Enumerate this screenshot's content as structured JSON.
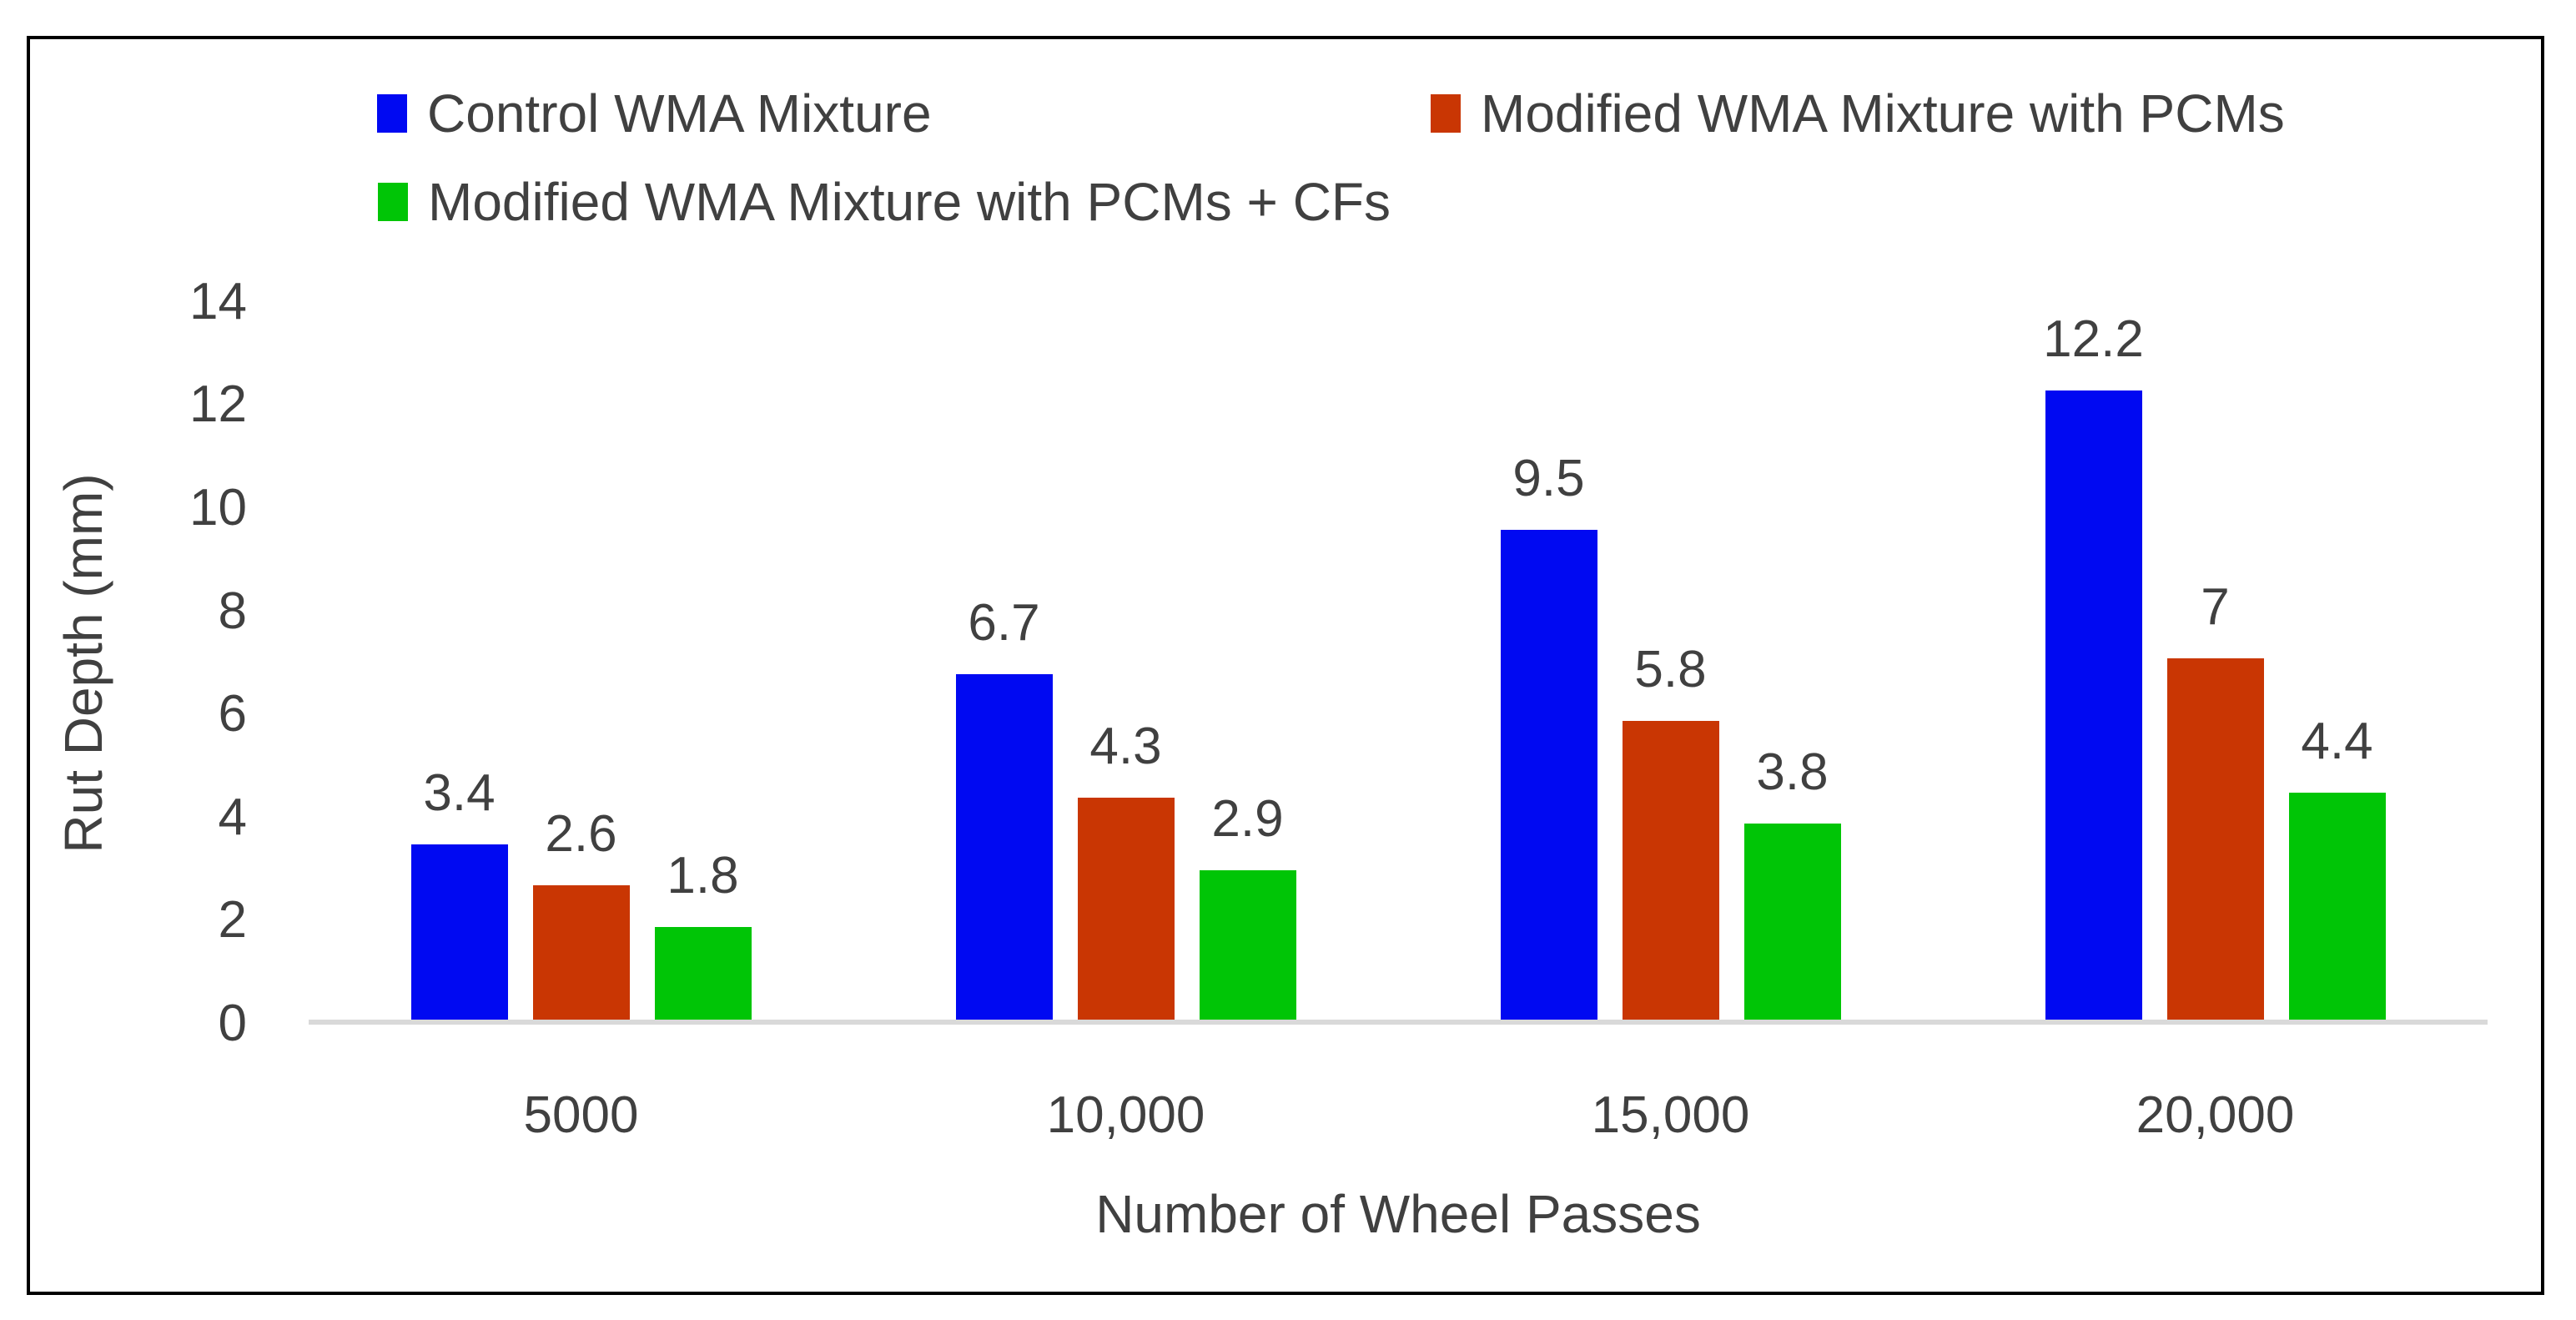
{
  "chart_data": {
    "type": "bar",
    "title": "",
    "categories": [
      "5000",
      "10,000",
      "15,000",
      "20,000"
    ],
    "series": [
      {
        "name": "Control WMA Mixture",
        "color": "#0009F2",
        "values": [
          3.4,
          6.7,
          9.5,
          12.2
        ],
        "labels": [
          "3.4",
          "6.7",
          "9.5",
          "12.2"
        ]
      },
      {
        "name": "Modified WMA Mixture with PCMs",
        "color": "#C93603",
        "values": [
          2.6,
          4.3,
          5.8,
          7
        ],
        "labels": [
          "2.6",
          "4.3",
          "5.8",
          "7"
        ]
      },
      {
        "name": "Modified WMA Mixture with PCMs + CFs",
        "color": "#00C506",
        "values": [
          1.8,
          2.9,
          3.8,
          4.4
        ],
        "labels": [
          "1.8",
          "2.9",
          "3.8",
          "4.4"
        ]
      }
    ],
    "xlabel": "Number of Wheel Passes",
    "ylabel": "Rut Depth (mm)",
    "ylim": [
      0,
      14
    ],
    "yticks": [
      0,
      2,
      4,
      6,
      8,
      10,
      12,
      14
    ],
    "grid": false,
    "legend_position": "top",
    "colors": {
      "text": "#404040",
      "axis_line": "#D9D9D9",
      "border": "#000000",
      "background": "#FFFFFF"
    }
  }
}
